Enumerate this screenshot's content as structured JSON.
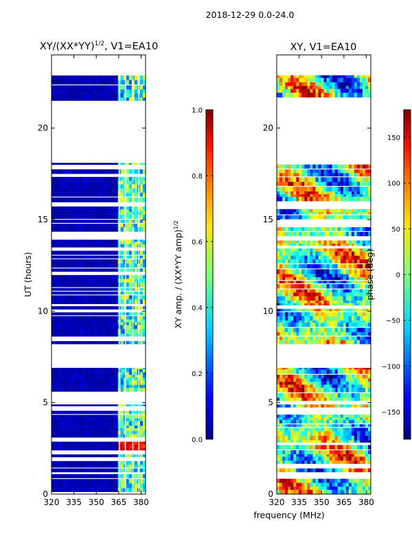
{
  "figure": {
    "suptitle": "2018-12-29 0.0-24.0",
    "shared_xlabel": "frequency (MHz)"
  },
  "chart_data": [
    {
      "type": "heatmap",
      "id": "amp",
      "title": "XY/(XX*YY)",
      "title_superscript": "1/2",
      "title_suffix": ", V1=EA10",
      "ylabel": "UT (hours)",
      "xlim": [
        320,
        383
      ],
      "ylim": [
        0,
        24
      ],
      "xticks": [
        320,
        335,
        350,
        365,
        380
      ],
      "yticks": [
        0,
        5,
        10,
        15,
        20
      ],
      "colorbar": {
        "label": "XY amp. / (XX*YY amp)",
        "label_superscript": "1/2",
        "range": [
          0.0,
          1.0
        ],
        "ticks": [
          "0.0",
          "0.2",
          "0.4",
          "0.6",
          "0.8",
          "1.0"
        ],
        "tick_values": [
          0.0,
          0.2,
          0.4,
          0.6,
          0.8,
          1.0
        ]
      },
      "data_bands_hours": [
        [
          0.0,
          1.1
        ],
        [
          1.2,
          4.9
        ],
        [
          5.1,
          6.9
        ],
        [
          8.2,
          13.9
        ],
        [
          14.1,
          18.1
        ],
        [
          21.5,
          22.9
        ]
      ],
      "low_amplitude_below_mhz": 363,
      "high_amplitude_hours": [
        2.4,
        2.9
      ]
    },
    {
      "type": "heatmap",
      "id": "phase",
      "title": "XY, V1=EA10",
      "ylabel": "",
      "xlim": [
        320,
        383
      ],
      "ylim": [
        0,
        24
      ],
      "xticks": [
        320,
        335,
        350,
        365,
        380
      ],
      "yticks": [
        0,
        5,
        10,
        15,
        20
      ],
      "colorbar": {
        "label": "phase (deg)",
        "range": [
          -180,
          180
        ],
        "ticks": [
          "150",
          "100",
          "50",
          "0",
          "−50",
          "−100",
          "−150"
        ],
        "tick_values": [
          150,
          100,
          50,
          0,
          -50,
          -100,
          -150
        ]
      },
      "data_bands_hours": [
        [
          0.0,
          1.1
        ],
        [
          1.2,
          4.9
        ],
        [
          5.1,
          6.9
        ],
        [
          8.2,
          13.9
        ],
        [
          14.1,
          18.1
        ],
        [
          21.5,
          22.9
        ]
      ]
    }
  ]
}
